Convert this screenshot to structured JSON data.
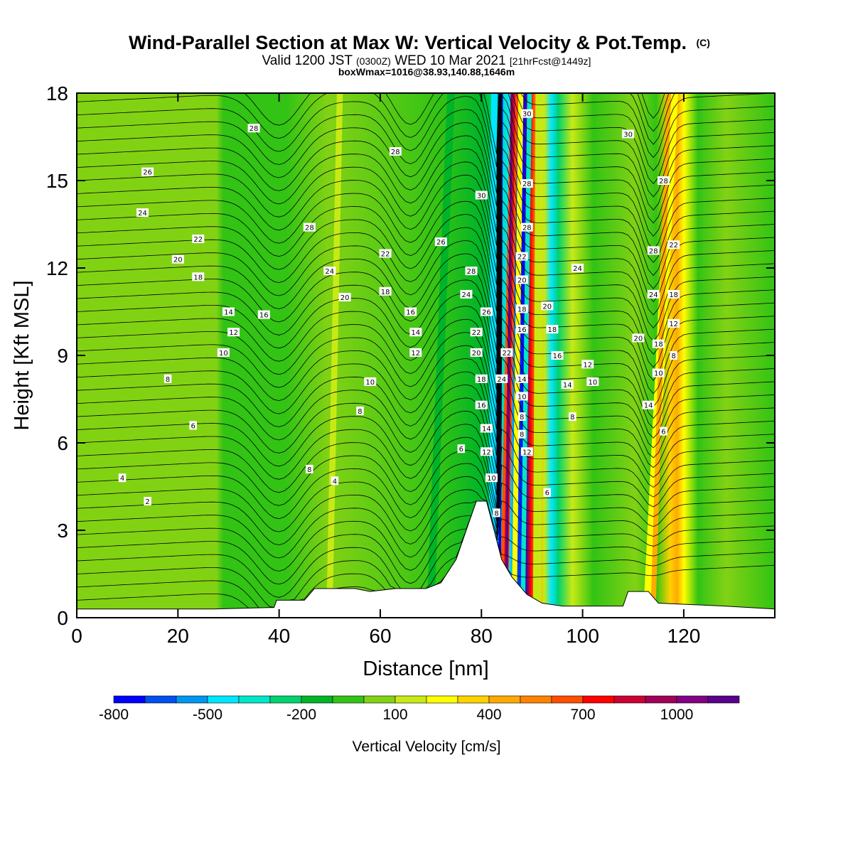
{
  "chart_data": {
    "type": "heatmap",
    "title": "Wind-Parallel Section at Max W: Vertical Velocity & Pot.Temp.",
    "copyright_mark": "(C)",
    "subtitle_parts": {
      "prefix": "Valid 1200 JST",
      "zulu": "(0300Z)",
      "date": "WED 10 Mar 2021",
      "forecast": "[21hrFcst@1449z]"
    },
    "subtitle2": "boxWmax=1016@38.93,140.88,1646m",
    "xlabel": "Distance [nm]",
    "ylabel": "Height [Kft MSL]",
    "xlim": [
      0,
      138
    ],
    "ylim": [
      0,
      18
    ],
    "x_ticks": [
      0,
      20,
      40,
      60,
      80,
      100,
      120
    ],
    "y_ticks": [
      0,
      3,
      6,
      9,
      12,
      15,
      18
    ],
    "colorbar": {
      "label": "Vertical Velocity [cm/s]",
      "tick_labels": [
        "-800",
        "-500",
        "-200",
        "100",
        "400",
        "700",
        "1000"
      ],
      "colors": [
        "#0000ff",
        "#0050f0",
        "#0096f0",
        "#00e6ff",
        "#00e6c8",
        "#00d26e",
        "#00b428",
        "#32c314",
        "#82d214",
        "#c8ea14",
        "#ffff00",
        "#ffd200",
        "#ffaa00",
        "#ff8200",
        "#ff5000",
        "#ff0000",
        "#cd0032",
        "#a0005a",
        "#820082",
        "#5a008c"
      ]
    },
    "terrain": [
      {
        "x": 0,
        "h": 0.3
      },
      {
        "x": 27,
        "h": 0.3
      },
      {
        "x": 39,
        "h": 0.35
      },
      {
        "x": 39.5,
        "h": 0.6
      },
      {
        "x": 45,
        "h": 0.6
      },
      {
        "x": 47,
        "h": 1.0
      },
      {
        "x": 55,
        "h": 1.0
      },
      {
        "x": 58,
        "h": 0.9
      },
      {
        "x": 63,
        "h": 1.0
      },
      {
        "x": 69,
        "h": 1.0
      },
      {
        "x": 72,
        "h": 1.2
      },
      {
        "x": 75,
        "h": 2.0
      },
      {
        "x": 77,
        "h": 3.0
      },
      {
        "x": 79,
        "h": 4.0
      },
      {
        "x": 81,
        "h": 4.0
      },
      {
        "x": 82.5,
        "h": 3.0
      },
      {
        "x": 84,
        "h": 2.0
      },
      {
        "x": 86,
        "h": 1.4
      },
      {
        "x": 89,
        "h": 0.8
      },
      {
        "x": 92,
        "h": 0.5
      },
      {
        "x": 96,
        "h": 0.4
      },
      {
        "x": 108,
        "h": 0.4
      },
      {
        "x": 109,
        "h": 0.9
      },
      {
        "x": 113,
        "h": 0.9
      },
      {
        "x": 115,
        "h": 0.5
      },
      {
        "x": 128,
        "h": 0.4
      },
      {
        "x": 138,
        "h": 0.3
      }
    ],
    "contour_labels": [
      {
        "text": "2",
        "x": 14,
        "y": 4.0
      },
      {
        "text": "4",
        "x": 9,
        "y": 4.8
      },
      {
        "text": "6",
        "x": 23,
        "y": 6.6
      },
      {
        "text": "8",
        "x": 18,
        "y": 8.2
      },
      {
        "text": "10",
        "x": 29,
        "y": 9.1
      },
      {
        "text": "12",
        "x": 31,
        "y": 9.8
      },
      {
        "text": "14",
        "x": 30,
        "y": 10.5
      },
      {
        "text": "16",
        "x": 37,
        "y": 10.4
      },
      {
        "text": "18",
        "x": 24,
        "y": 11.7
      },
      {
        "text": "20",
        "x": 20,
        "y": 12.3
      },
      {
        "text": "22",
        "x": 24,
        "y": 13.0
      },
      {
        "text": "24",
        "x": 13,
        "y": 13.9
      },
      {
        "text": "26",
        "x": 14,
        "y": 15.3
      },
      {
        "text": "28",
        "x": 35,
        "y": 16.8
      },
      {
        "text": "28",
        "x": 46,
        "y": 13.4
      },
      {
        "text": "24",
        "x": 50,
        "y": 11.9
      },
      {
        "text": "20",
        "x": 53,
        "y": 11.0
      },
      {
        "text": "22",
        "x": 61,
        "y": 12.5
      },
      {
        "text": "18",
        "x": 61,
        "y": 11.2
      },
      {
        "text": "28",
        "x": 63,
        "y": 16.0
      },
      {
        "text": "26",
        "x": 72,
        "y": 12.9
      },
      {
        "text": "16",
        "x": 66,
        "y": 10.5
      },
      {
        "text": "14",
        "x": 67,
        "y": 9.8
      },
      {
        "text": "12",
        "x": 67,
        "y": 9.1
      },
      {
        "text": "10",
        "x": 58,
        "y": 8.1
      },
      {
        "text": "8",
        "x": 56,
        "y": 7.1
      },
      {
        "text": "8",
        "x": 46,
        "y": 5.1
      },
      {
        "text": "4",
        "x": 51,
        "y": 4.7
      },
      {
        "text": "6",
        "x": 76,
        "y": 5.8
      },
      {
        "text": "30",
        "x": 80,
        "y": 14.5
      },
      {
        "text": "28",
        "x": 78,
        "y": 11.9
      },
      {
        "text": "24",
        "x": 77,
        "y": 11.1
      },
      {
        "text": "26",
        "x": 81,
        "y": 10.5
      },
      {
        "text": "22",
        "x": 79,
        "y": 9.8
      },
      {
        "text": "20",
        "x": 79,
        "y": 9.1
      },
      {
        "text": "18",
        "x": 80,
        "y": 8.2
      },
      {
        "text": "16",
        "x": 80,
        "y": 7.3
      },
      {
        "text": "14",
        "x": 81,
        "y": 6.5
      },
      {
        "text": "12",
        "x": 81,
        "y": 5.7
      },
      {
        "text": "10",
        "x": 82,
        "y": 4.8
      },
      {
        "text": "8",
        "x": 83,
        "y": 3.6
      },
      {
        "text": "22",
        "x": 85,
        "y": 9.1
      },
      {
        "text": "24",
        "x": 84,
        "y": 8.2
      },
      {
        "text": "30",
        "x": 89,
        "y": 17.3
      },
      {
        "text": "28",
        "x": 89,
        "y": 14.9
      },
      {
        "text": "28",
        "x": 89,
        "y": 13.4
      },
      {
        "text": "22",
        "x": 88,
        "y": 12.4
      },
      {
        "text": "20",
        "x": 88,
        "y": 11.6
      },
      {
        "text": "18",
        "x": 88,
        "y": 10.6
      },
      {
        "text": "16",
        "x": 88,
        "y": 9.9
      },
      {
        "text": "14",
        "x": 88,
        "y": 8.2
      },
      {
        "text": "10",
        "x": 88,
        "y": 7.6
      },
      {
        "text": "8",
        "x": 88,
        "y": 6.9
      },
      {
        "text": "8",
        "x": 88,
        "y": 6.3
      },
      {
        "text": "12",
        "x": 89,
        "y": 5.7
      },
      {
        "text": "6",
        "x": 93,
        "y": 4.3
      },
      {
        "text": "24",
        "x": 99,
        "y": 12.0
      },
      {
        "text": "20",
        "x": 93,
        "y": 10.7
      },
      {
        "text": "18",
        "x": 94,
        "y": 9.9
      },
      {
        "text": "16",
        "x": 95,
        "y": 9.0
      },
      {
        "text": "14",
        "x": 97,
        "y": 8.0
      },
      {
        "text": "12",
        "x": 101,
        "y": 8.7
      },
      {
        "text": "10",
        "x": 102,
        "y": 8.1
      },
      {
        "text": "8",
        "x": 98,
        "y": 6.9
      },
      {
        "text": "30",
        "x": 109,
        "y": 16.6
      },
      {
        "text": "28",
        "x": 116,
        "y": 15.0
      },
      {
        "text": "28",
        "x": 114,
        "y": 12.6
      },
      {
        "text": "22",
        "x": 118,
        "y": 12.8
      },
      {
        "text": "24",
        "x": 114,
        "y": 11.1
      },
      {
        "text": "18",
        "x": 118,
        "y": 11.1
      },
      {
        "text": "20",
        "x": 111,
        "y": 9.6
      },
      {
        "text": "12",
        "x": 118,
        "y": 10.1
      },
      {
        "text": "18",
        "x": 115,
        "y": 9.4
      },
      {
        "text": "8",
        "x": 118,
        "y": 9.0
      },
      {
        "text": "10",
        "x": 115,
        "y": 8.4
      },
      {
        "text": "14",
        "x": 113,
        "y": 7.3
      },
      {
        "text": "6",
        "x": 116,
        "y": 6.4
      }
    ]
  }
}
